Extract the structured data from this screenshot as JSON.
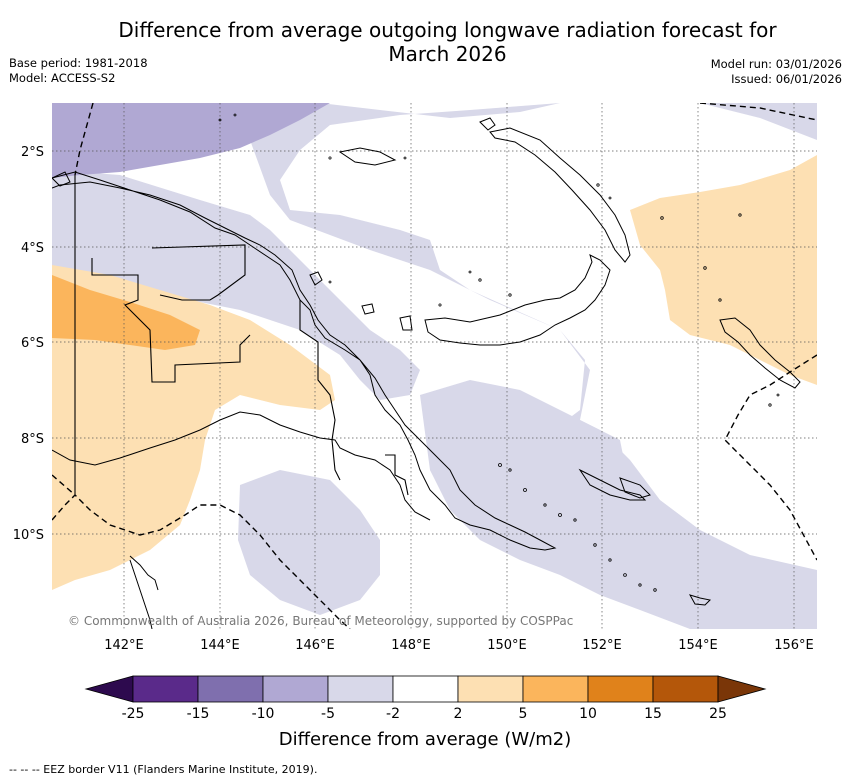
{
  "title_line1": "Difference from average outgoing longwave radiation forecast for",
  "title_line2": "March 2026",
  "meta": {
    "base_period": "Base period: 1981-2018",
    "model": "Model: ACCESS-S2",
    "model_run": "Model run: 03/01/2026",
    "issued": "Issued: 06/01/2026"
  },
  "lat_ticks": [
    "2°S",
    "4°S",
    "6°S",
    "8°S",
    "10°S"
  ],
  "lon_ticks": [
    "142°E",
    "144°E",
    "146°E",
    "148°E",
    "150°E",
    "152°E",
    "154°E",
    "156°E"
  ],
  "copyright": "© Commonwealth of Australia 2026, Bureau of Meteorology, supported by COSPPac",
  "colorbar": {
    "labels": [
      "-25",
      "-15",
      "-10",
      "-5",
      "-2",
      "2",
      "5",
      "10",
      "15",
      "25"
    ],
    "colors": [
      "#2d0a4e",
      "#5a2a8a",
      "#7f6fae",
      "#b0a8d3",
      "#d8d8e9",
      "#ffffff",
      "#fde0b3",
      "#fbb55c",
      "#e0821b",
      "#b4570a",
      "#7a3608"
    ],
    "title": "Difference from average (W/m2)"
  },
  "legend_footnote": "--  --  -- EEZ border V11 (Flanders Marine Institute, 2019)."
}
